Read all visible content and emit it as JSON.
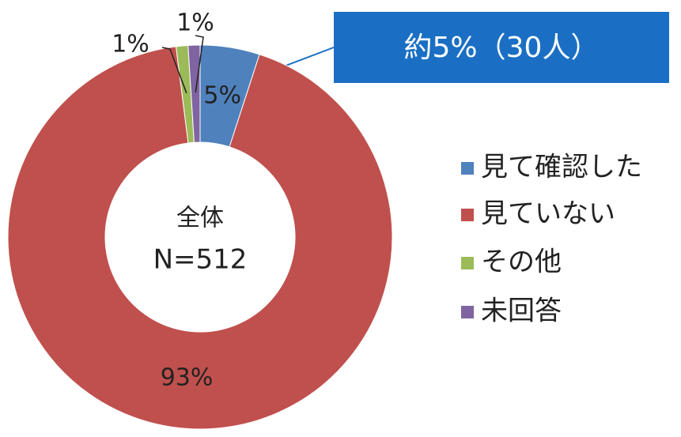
{
  "chart_data": {
    "type": "donut",
    "categories": [
      "見て確認した",
      "見ていない",
      "その他",
      "未回答"
    ],
    "values": [
      5,
      93,
      1,
      1
    ],
    "value_labels": [
      "5%",
      "93%",
      "1%",
      "1%"
    ],
    "colors": [
      "#4f81bd",
      "#c0504d",
      "#9bbb59",
      "#8064a2"
    ],
    "center_text": [
      "全体",
      "N=512"
    ],
    "annotation": "約5%（30人）",
    "legend": "right"
  }
}
